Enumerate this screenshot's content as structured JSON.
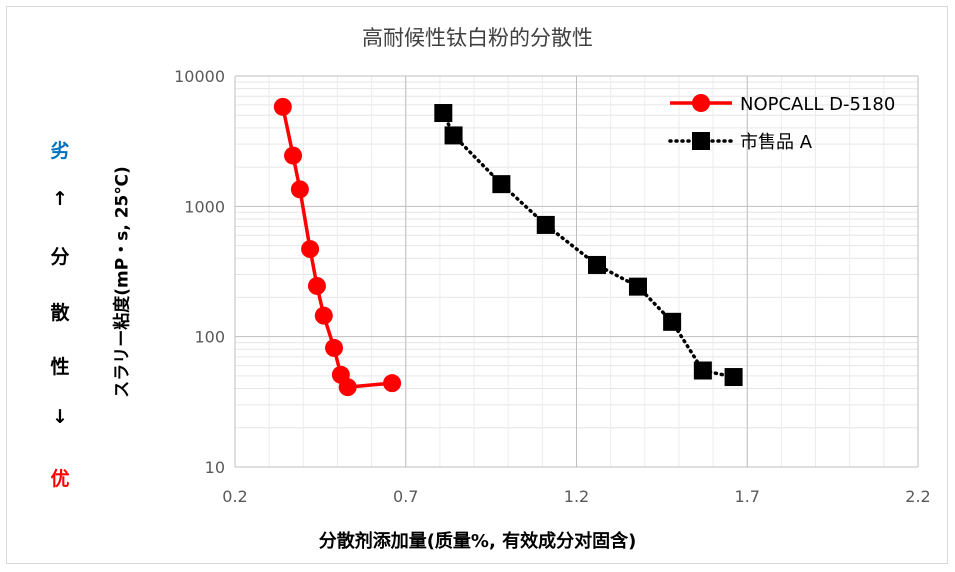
{
  "chart_data": {
    "type": "scatter",
    "title": "高耐候性钛白粉的分散性",
    "xlabel": "分散剂添加量(质量%, 有效成分对固含)",
    "ylabel": "スラリー粘度(mP・s, 25℃)",
    "xlim": [
      0.2,
      2.2
    ],
    "ylim": [
      10,
      10000
    ],
    "yscale": "log",
    "xticks": [
      "0.2",
      "0.7",
      "1.2",
      "1.7",
      "2.2"
    ],
    "yticks": [
      "10",
      "100",
      "1000",
      "10000"
    ],
    "grid": true,
    "legend_position": "top-right",
    "series": [
      {
        "name": "NOPCALL D-5180",
        "line": "solid",
        "marker": "circle",
        "color": "#ff0000",
        "points": [
          [
            0.34,
            5800
          ],
          [
            0.37,
            2450
          ],
          [
            0.39,
            1350
          ],
          [
            0.42,
            470
          ],
          [
            0.44,
            245
          ],
          [
            0.46,
            145
          ],
          [
            0.49,
            82
          ],
          [
            0.51,
            51
          ],
          [
            0.53,
            41
          ],
          [
            0.66,
            44
          ]
        ]
      },
      {
        "name": "市售品 A",
        "line": "dotted",
        "marker": "square",
        "color": "#000000",
        "points": [
          [
            0.81,
            5200
          ],
          [
            0.84,
            3500
          ],
          [
            0.98,
            1480
          ],
          [
            1.11,
            720
          ],
          [
            1.26,
            355
          ],
          [
            1.38,
            242
          ],
          [
            1.48,
            130
          ],
          [
            1.57,
            55
          ],
          [
            1.66,
            49
          ]
        ]
      }
    ]
  },
  "side_label": {
    "top_word": "劣",
    "top_color": "#0070c0",
    "arrow_up": "↑",
    "chars": [
      "分",
      "散",
      "性"
    ],
    "arrow_down": "↓",
    "bottom_word": "优",
    "bottom_color": "#ff0000"
  }
}
